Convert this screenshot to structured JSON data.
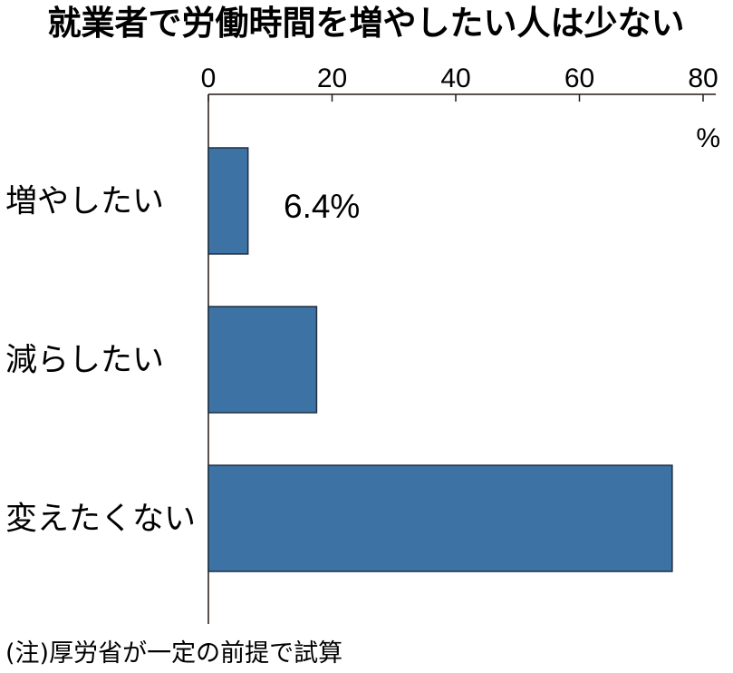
{
  "chart_data": {
    "type": "bar",
    "orientation": "horizontal",
    "title": "就業者で労働時間を増やしたい人は少ない",
    "categories": [
      "増やしたい",
      "減らしたい",
      "変えたくない"
    ],
    "values": [
      6.4,
      17.5,
      75.0
    ],
    "data_labels": [
      "6.4%",
      "",
      ""
    ],
    "unit": "%",
    "xticks": [
      "0",
      "20",
      "40",
      "60",
      "80"
    ],
    "xlim": [
      0,
      80
    ],
    "axis_position": "top",
    "grid": false,
    "note": "(注)厚労省が一定の前提で試算",
    "colors": {
      "bar": "#3d72a4",
      "bar_stroke": "#1f2f40",
      "axis": "#231815"
    }
  }
}
